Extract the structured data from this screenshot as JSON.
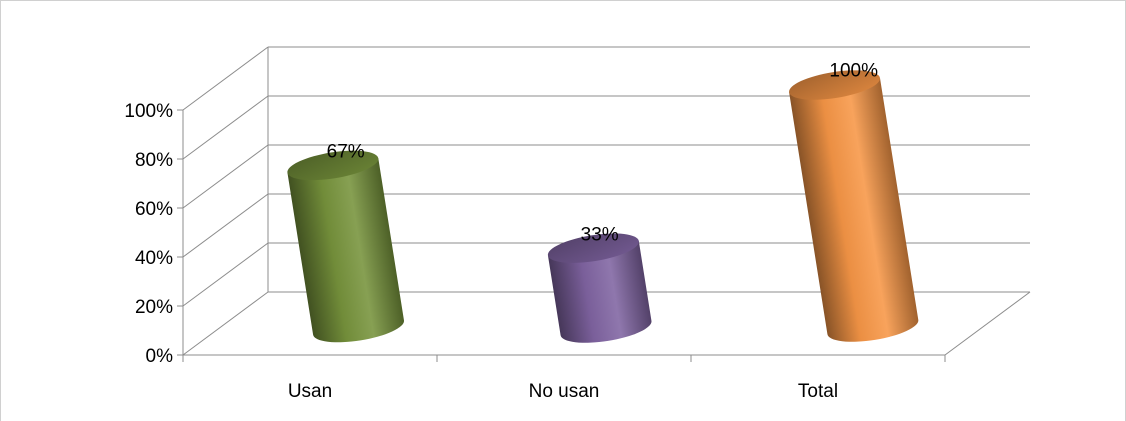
{
  "chart_data": {
    "type": "bar",
    "style": "3d-cylinder",
    "categories": [
      "Usan",
      "No usan",
      "Total"
    ],
    "values": [
      67,
      33,
      100
    ],
    "data_labels": [
      "67%",
      "33%",
      "100%"
    ],
    "ylim": [
      0,
      100
    ],
    "yticks": [
      0,
      20,
      40,
      60,
      80,
      100
    ],
    "ytick_labels": [
      "0%",
      "20%",
      "40%",
      "60%",
      "80%",
      "100%"
    ],
    "grid": true,
    "legend": "none",
    "title": "",
    "xlabel": "",
    "ylabel": "",
    "colors": [
      "#77933c",
      "#8064a2",
      "#f79646"
    ]
  }
}
